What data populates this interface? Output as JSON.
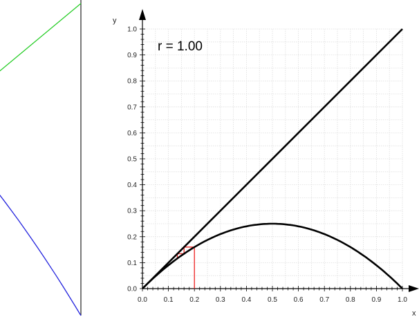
{
  "chart_data": [
    {
      "type": "line",
      "title": "",
      "xlabel": "",
      "ylabel": "",
      "series": [
        {
          "values": [
            [
              0.0,
              0.0
            ],
            [
              1.0,
              1.0
            ]
          ],
          "color": "#22cc22"
        },
        {
          "values": [
            [
              0.0,
              1.0
            ],
            [
              0.25,
              0.9375
            ],
            [
              0.5,
              0.75
            ],
            [
              0.75,
              0.4375
            ],
            [
              1.0,
              0.0
            ]
          ],
          "color": "#2222dd"
        }
      ],
      "grid": false
    },
    {
      "type": "line",
      "title": "",
      "annotation": "r = 1.00",
      "xlabel": "x",
      "ylabel": "y",
      "xlim": [
        0.0,
        1.0
      ],
      "ylim": [
        0.0,
        1.0
      ],
      "xticks": [
        "0.0",
        "0.1",
        "0.2",
        "0.3",
        "0.4",
        "0.5",
        "0.6",
        "0.7",
        "0.8",
        "0.9",
        "1.0"
      ],
      "yticks": [
        "0.0",
        "0.1",
        "0.2",
        "0.3",
        "0.4",
        "0.5",
        "0.6",
        "0.7",
        "0.8",
        "0.9",
        "1.0"
      ],
      "r": 1.0,
      "series": [
        {
          "values": [
            [
              0.0,
              0.0
            ],
            [
              1.0,
              1.0
            ]
          ],
          "color": "#000000"
        },
        {
          "function": "r*x*(1-x)",
          "color": "#000000"
        },
        {
          "values": [
            [
              0.2,
              0.0
            ],
            [
              0.2,
              0.16
            ],
            [
              0.16,
              0.16
            ],
            [
              0.16,
              0.1344
            ],
            [
              0.1344,
              0.1344
            ],
            [
              0.1344,
              0.1163
            ]
          ],
          "color": "#ee2222"
        }
      ],
      "grid": true,
      "colors": {
        "grid": "#dddddd",
        "axes": "#000000"
      }
    }
  ]
}
